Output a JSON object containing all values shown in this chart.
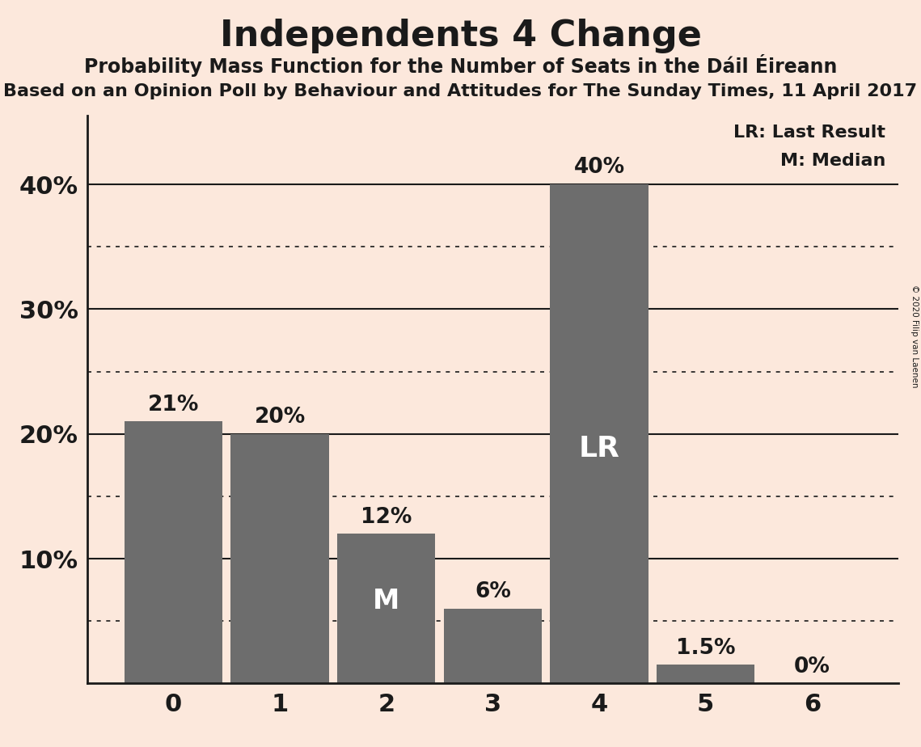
{
  "title": "Independents 4 Change",
  "subtitle1": "Probability Mass Function for the Number of Seats in the Dáil Éireann",
  "subtitle2": "Based on an Opinion Poll by Behaviour and Attitudes for The Sunday Times, 11 April 2017",
  "copyright": "© 2020 Filip van Laenen",
  "categories": [
    0,
    1,
    2,
    3,
    4,
    5,
    6
  ],
  "values": [
    0.21,
    0.2,
    0.12,
    0.06,
    0.4,
    0.015,
    0.0
  ],
  "bar_color": "#6d6d6d",
  "background_color": "#fce8dc",
  "label_color": "#1a1a1a",
  "bar_labels": [
    "21%",
    "20%",
    "12%",
    "6%",
    "40%",
    "1.5%",
    "0%"
  ],
  "median_bar": 2,
  "lr_bar": 4,
  "median_label": "M",
  "lr_label": "LR",
  "legend_lr": "LR: Last Result",
  "legend_m": "M: Median",
  "yticks": [
    0.1,
    0.2,
    0.3,
    0.4
  ],
  "ytick_labels": [
    "10%",
    "20%",
    "30%",
    "40%"
  ],
  "ylim": [
    0,
    0.455
  ],
  "solid_lines": [
    0.1,
    0.2,
    0.3,
    0.4
  ],
  "dotted_lines": [
    0.35,
    0.25,
    0.15,
    0.05
  ]
}
